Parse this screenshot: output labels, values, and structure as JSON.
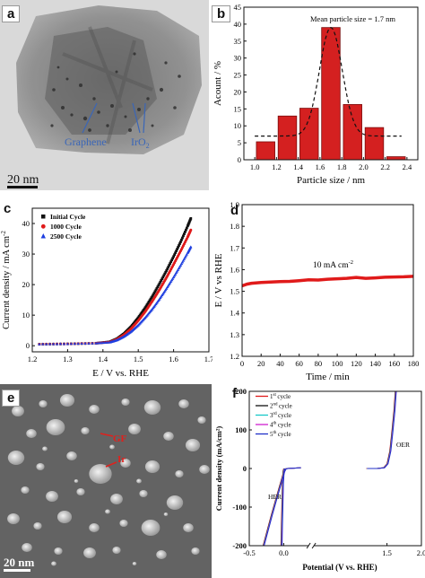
{
  "figure": {
    "panels": [
      {
        "id": "a",
        "kind": "micrograph",
        "label": "a",
        "annotations": {
          "graphene": "Graphene",
          "iro2_base": "IrO",
          "iro2_sub": "2",
          "scale_bar": "20 nm"
        },
        "colors": {
          "annotation": "#3a66b8"
        }
      },
      {
        "id": "b",
        "kind": "chart",
        "label": "b"
      },
      {
        "id": "c",
        "kind": "chart",
        "label": "c"
      },
      {
        "id": "d",
        "kind": "chart",
        "label": "d"
      },
      {
        "id": "e",
        "kind": "micrograph",
        "label": "e",
        "annotations": {
          "gf": "GF",
          "ir": "Ir",
          "scale_bar": "20 nm"
        },
        "colors": {
          "annotation": "#e0201c"
        }
      },
      {
        "id": "f",
        "kind": "chart",
        "label": "f"
      }
    ]
  },
  "chart_data": [
    {
      "panel": "b",
      "type": "bar",
      "xlabel": "Particle size / nm",
      "ylabel": "Acount / %",
      "xlim": [
        0.9,
        2.5
      ],
      "ylim": [
        0,
        45
      ],
      "xticks": [
        "1.0",
        "1.2",
        "1.4",
        "1.6",
        "1.8",
        "2.0",
        "2.2",
        "2.4"
      ],
      "yticks": [
        "0",
        "5",
        "10",
        "15",
        "20",
        "25",
        "30",
        "35",
        "40",
        "45"
      ],
      "bar_centers": [
        1.1,
        1.3,
        1.5,
        1.7,
        1.9,
        2.1,
        2.3
      ],
      "bar_width": 0.17,
      "values": [
        5.3,
        12.9,
        15.2,
        39.0,
        16.3,
        9.5,
        0.9
      ],
      "fit_curve": {
        "style": "dashed",
        "baseline": 7,
        "peak": 39,
        "center": 1.7,
        "sigma": 0.105
      },
      "annotation": "Mean particle size = 1.7 nm",
      "colors": {
        "bar": "#d42020",
        "bar_edge": "#7a0d0d",
        "fit": "#111111"
      }
    },
    {
      "panel": "c",
      "type": "scatter",
      "xlabel": "E / V vs. RHE",
      "ylabel_base": "Current density / mA cm",
      "ylabel_sup": "-2",
      "xlim": [
        1.2,
        1.7
      ],
      "ylim": [
        -2,
        45
      ],
      "xticks": [
        "1.2",
        "1.3",
        "1.4",
        "1.5",
        "1.6",
        "1.7"
      ],
      "yticks": [
        "0",
        "10",
        "20",
        "30",
        "40"
      ],
      "legend_position": "top-left",
      "series": [
        {
          "name": "Initial Cycle",
          "marker": "square",
          "color": "#111111",
          "x": [
            1.22,
            1.3,
            1.38,
            1.42,
            1.44,
            1.46,
            1.48,
            1.5,
            1.52,
            1.54,
            1.56,
            1.58,
            1.6,
            1.62,
            1.64,
            1.65
          ],
          "y": [
            0.5,
            0.6,
            0.8,
            1.3,
            2.3,
            4.0,
            6.3,
            9.2,
            12.5,
            16.2,
            20.3,
            24.6,
            29.2,
            34.0,
            39.2,
            42.0
          ]
        },
        {
          "name": "1000 Cycle",
          "marker": "circle",
          "color": "#e01a1a",
          "x": [
            1.22,
            1.3,
            1.38,
            1.42,
            1.44,
            1.46,
            1.48,
            1.5,
            1.52,
            1.54,
            1.56,
            1.58,
            1.6,
            1.62,
            1.64,
            1.65
          ],
          "y": [
            0.5,
            0.6,
            0.8,
            1.2,
            2.1,
            3.6,
            5.6,
            8.2,
            11.2,
            14.6,
            18.3,
            22.3,
            26.6,
            31.0,
            35.6,
            38.2
          ]
        },
        {
          "name": "2500 Cycle",
          "marker": "triangle",
          "color": "#1e3fe0",
          "x": [
            1.22,
            1.3,
            1.38,
            1.42,
            1.44,
            1.46,
            1.48,
            1.5,
            1.52,
            1.54,
            1.56,
            1.58,
            1.6,
            1.62,
            1.64,
            1.65
          ],
          "y": [
            0.5,
            0.6,
            0.8,
            1.1,
            1.8,
            3.0,
            4.6,
            6.7,
            9.2,
            12.0,
            15.2,
            18.7,
            22.4,
            26.3,
            30.4,
            32.6
          ]
        }
      ]
    },
    {
      "panel": "d",
      "type": "line",
      "xlabel": "Time / min",
      "ylabel": "E / V vs RHE",
      "xlim": [
        0,
        180
      ],
      "ylim": [
        1.2,
        1.9
      ],
      "xticks": [
        "0",
        "20",
        "40",
        "60",
        "80",
        "100",
        "120",
        "140",
        "160",
        "180"
      ],
      "yticks": [
        "1.2",
        "1.3",
        "1.4",
        "1.5",
        "1.6",
        "1.7",
        "1.8",
        "1.9"
      ],
      "annotation_base": "10 mA cm",
      "annotation_sup": "-2",
      "series": [
        {
          "color": "#e01a1a",
          "x": [
            0,
            5,
            10,
            20,
            30,
            40,
            50,
            60,
            70,
            80,
            90,
            100,
            110,
            120,
            130,
            140,
            150,
            160,
            170,
            180
          ],
          "y": [
            1.525,
            1.533,
            1.537,
            1.541,
            1.543,
            1.545,
            1.546,
            1.549,
            1.553,
            1.552,
            1.556,
            1.558,
            1.56,
            1.564,
            1.56,
            1.562,
            1.565,
            1.566,
            1.567,
            1.569
          ]
        }
      ]
    },
    {
      "panel": "f",
      "type": "line",
      "xlabel": "Potential (V vs. RHE)",
      "ylabel": "Current density (mA/cm²)",
      "xlim": [
        -0.5,
        2.0
      ],
      "ylim": [
        -200,
        200
      ],
      "xticks": [
        "-0.5",
        "0.0",
        "1.5",
        "2.0"
      ],
      "yticks": [
        "-200",
        "-100",
        "0",
        "100",
        "200"
      ],
      "axis_break_at": 0.4,
      "legend_position": "top-left",
      "annotations": {
        "her": "HER",
        "oer": "OER"
      },
      "series": [
        {
          "name": "cycle",
          "sup": "st",
          "num": "1",
          "color": "#e01a1a"
        },
        {
          "name": "cycle",
          "sup": "nd",
          "num": "2",
          "color": "#111111"
        },
        {
          "name": "cycle",
          "sup": "rd",
          "num": "3",
          "color": "#18c8c8"
        },
        {
          "name": "cycle",
          "sup": "th",
          "num": "4",
          "color": "#d020d0"
        },
        {
          "name": "cycle",
          "sup": "th",
          "num": "5",
          "color": "#2030c8"
        }
      ],
      "her_curve": {
        "x": [
          -0.3,
          -0.24,
          -0.18,
          -0.12,
          -0.06,
          0.0,
          0.02,
          0.05
        ],
        "y": [
          -200,
          -160,
          -120,
          -82,
          -45,
          -8,
          -1,
          0
        ]
      },
      "her_steep_curve": {
        "x": [
          -0.04,
          -0.035,
          -0.03,
          -0.025,
          -0.02,
          -0.01,
          0.0
        ],
        "y": [
          -200,
          -160,
          -120,
          -80,
          -40,
          -8,
          0
        ]
      },
      "mid_curve": {
        "x": [
          0.05,
          0.15,
          0.25
        ],
        "y": [
          0,
          1,
          2
        ]
      },
      "oer_curve": {
        "x": [
          1.2,
          1.35,
          1.45,
          1.5,
          1.54,
          1.57,
          1.6,
          1.62
        ],
        "y": [
          0,
          0,
          2,
          12,
          45,
          95,
          150,
          200
        ]
      }
    }
  ]
}
